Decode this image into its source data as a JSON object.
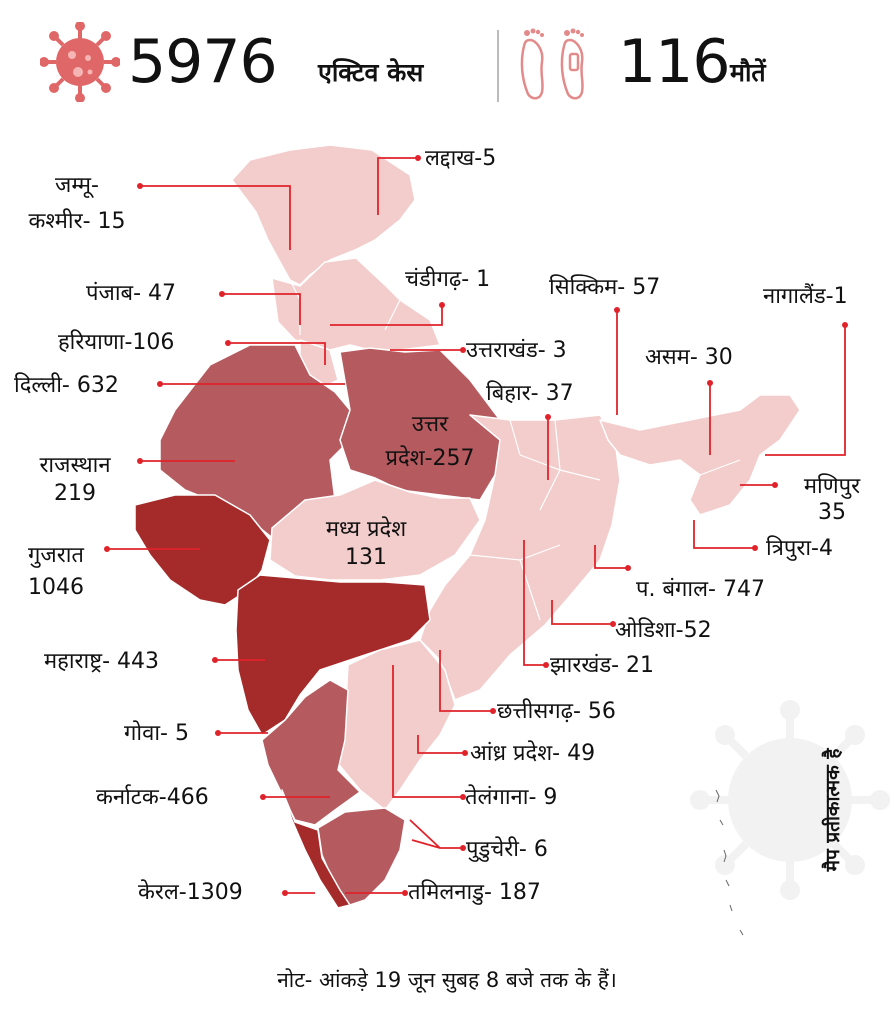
{
  "header": {
    "active_cases_value": "5976",
    "active_cases_label": "एक्टिव केस",
    "deaths_value": "116",
    "deaths_label": "मौतें"
  },
  "icons": {
    "virus": "virus-icon",
    "footprints": "footprints-icon"
  },
  "colors": {
    "level_1": "#f3cccc",
    "level_2": "#b55a5e",
    "level_3": "#a52a2a",
    "pointer": "#e0232b",
    "watermark": "#f1f1f1"
  },
  "states": [
    {
      "label": "जम्मू-\nकश्मीर- 15"
    },
    {
      "label": "लद्दाख-5"
    },
    {
      "label": "पंजाब- 47"
    },
    {
      "label": "चंडीगढ़- 1"
    },
    {
      "label": "सिक्किम- 57"
    },
    {
      "label": "नागालैंड-1"
    },
    {
      "label": "हरियाणा-106"
    },
    {
      "label": "उत्तराखंड- 3"
    },
    {
      "label": "असम- 30"
    },
    {
      "label": "दिल्ली- 632"
    },
    {
      "label": "बिहार- 37"
    },
    {
      "label": "उत्तर\nप्रदेश-257"
    },
    {
      "label": "राजस्थान\n219"
    },
    {
      "label": "मणिपुर\n35"
    },
    {
      "label": "मध्य प्रदेश\n131"
    },
    {
      "label": "गुजरात\n1046"
    },
    {
      "label": "त्रिपुरा-4"
    },
    {
      "label": "प. बंगाल- 747"
    },
    {
      "label": "ओडिशा-52"
    },
    {
      "label": "महाराष्ट्र- 443"
    },
    {
      "label": "झारखंड- 21"
    },
    {
      "label": "छत्तीसगढ़- 56"
    },
    {
      "label": "गोवा- 5"
    },
    {
      "label": "आंध्र प्रदेश- 49"
    },
    {
      "label": "कर्नाटक-466"
    },
    {
      "label": "तेलंगाना- 9"
    },
    {
      "label": "पुडुचेरी- 6"
    },
    {
      "label": "केरल-1309"
    },
    {
      "label": "तमिलनाडु- 187"
    }
  ],
  "side_note": "मैप प्रतीकात्मक है",
  "footer_note": "नोट- आंकड़े 19 जून सुबह 8 बजे तक के हैं।"
}
